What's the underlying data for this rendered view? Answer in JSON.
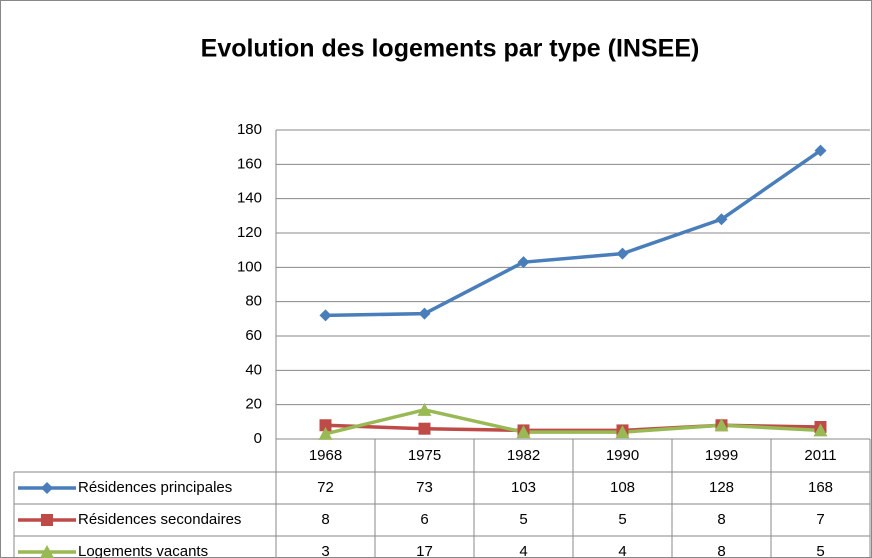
{
  "chart_data": {
    "type": "line",
    "title": "Evolution des logements par type (INSEE)",
    "categories": [
      "1968",
      "1975",
      "1982",
      "1990",
      "1999",
      "2011"
    ],
    "series": [
      {
        "name": "Résidences principales",
        "color": "#4a7ebb",
        "marker": "diamond",
        "values": [
          72,
          73,
          103,
          108,
          128,
          168
        ]
      },
      {
        "name": "Résidences secondaires",
        "color": "#be4b48",
        "marker": "square",
        "values": [
          8,
          6,
          5,
          5,
          8,
          7
        ]
      },
      {
        "name": "Logements vacants",
        "color": "#98b954",
        "marker": "triangle",
        "values": [
          3,
          17,
          4,
          4,
          8,
          5
        ]
      }
    ],
    "ylim": [
      0,
      180
    ],
    "yticks": [
      0,
      20,
      40,
      60,
      80,
      100,
      120,
      140,
      160,
      180
    ],
    "grid": true,
    "data_table": true
  }
}
